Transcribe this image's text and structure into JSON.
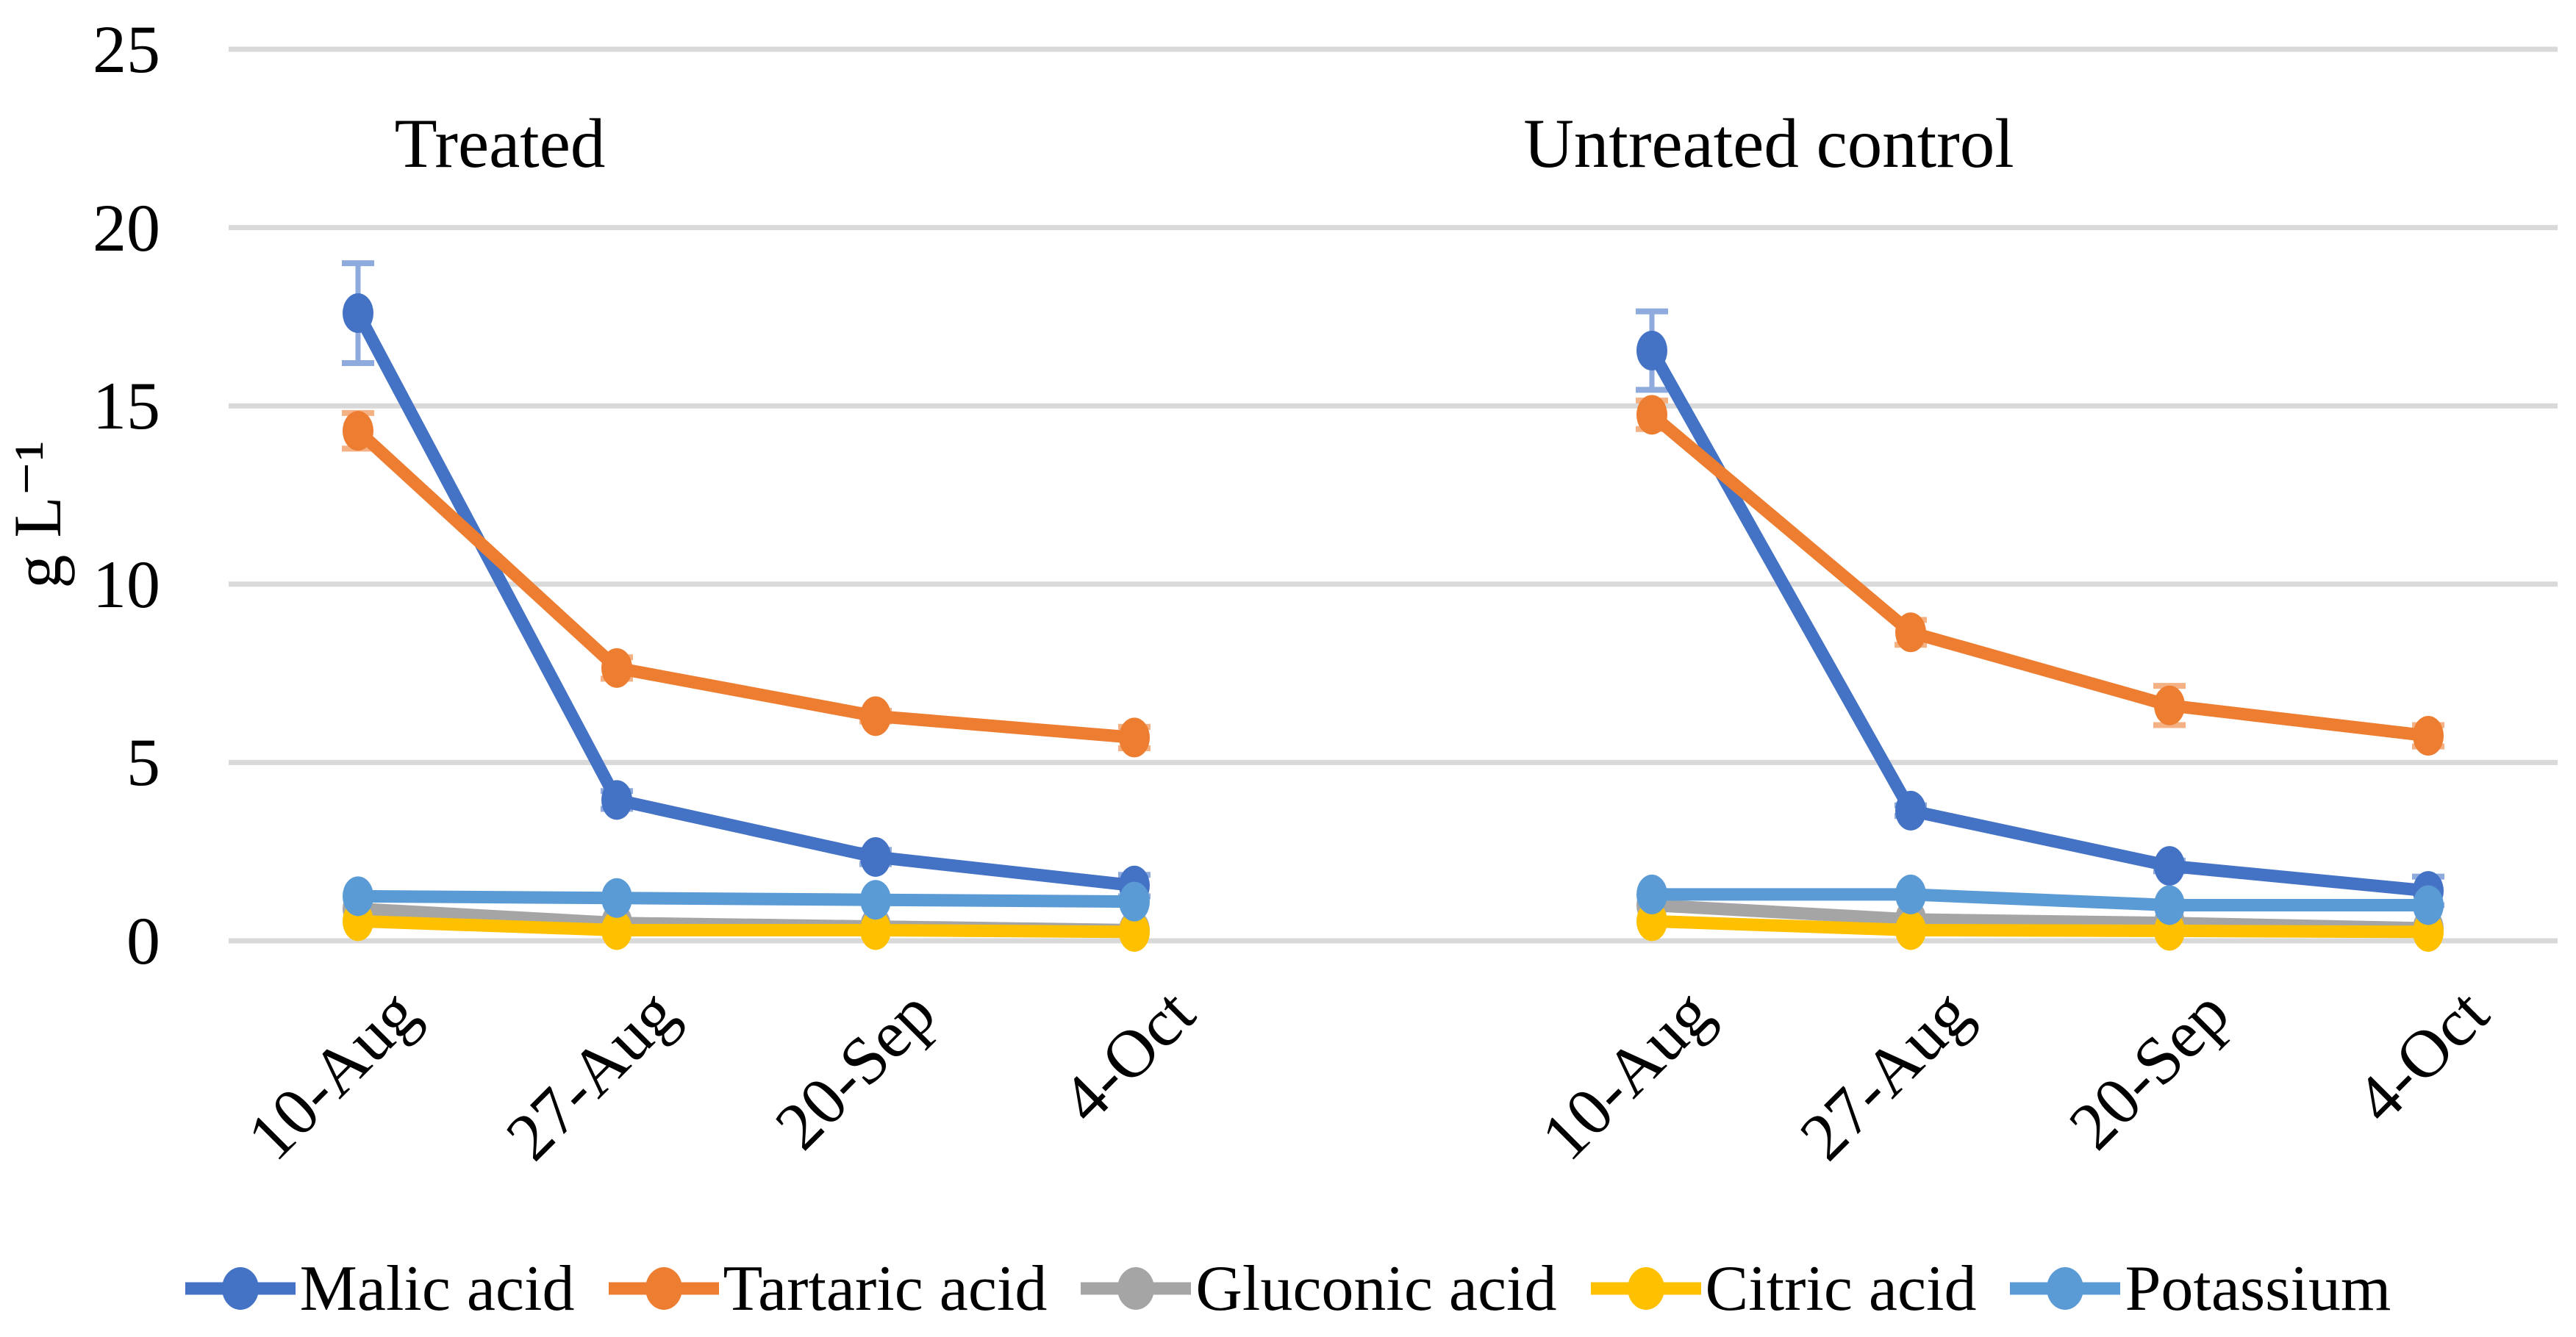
{
  "chart_data": {
    "type": "line",
    "title": "",
    "y_axis": {
      "label": "g L⁻¹",
      "ticks": [
        0,
        5,
        10,
        15,
        20,
        25
      ],
      "min": 0,
      "max": 25,
      "grid": true,
      "grid_color": "#D9D9D9"
    },
    "categories": [
      "10-Aug",
      "27-Aug",
      "20-Sep",
      "4-Oct"
    ],
    "panels": [
      {
        "key": "treated",
        "title": "Treated"
      },
      {
        "key": "untreated",
        "title": "Untreated control"
      }
    ],
    "legend_position": "bottom",
    "series": [
      {
        "name": "Malic acid",
        "color": "#4472C4",
        "error_color": "#8FAADC",
        "values": {
          "treated": [
            17.6,
            3.95,
            2.35,
            1.55
          ],
          "untreated": [
            16.55,
            3.65,
            2.1,
            1.4
          ]
        },
        "errors": {
          "treated": [
            1.4,
            0.25,
            0.2,
            0.3
          ],
          "untreated": [
            1.1,
            0.15,
            0.15,
            0.4
          ]
        }
      },
      {
        "name": "Tartaric acid",
        "color": "#ED7D31",
        "error_color": "#F4B183",
        "values": {
          "treated": [
            14.3,
            7.65,
            6.3,
            5.7
          ],
          "untreated": [
            14.75,
            8.65,
            6.6,
            5.75
          ]
        },
        "errors": {
          "treated": [
            0.5,
            0.3,
            0.15,
            0.3
          ],
          "untreated": [
            0.4,
            0.35,
            0.55,
            0.3
          ]
        }
      },
      {
        "name": "Gluconic acid",
        "color": "#A5A5A5",
        "values": {
          "treated": [
            0.9,
            0.5,
            0.4,
            0.3
          ],
          "untreated": [
            1.0,
            0.6,
            0.5,
            0.35
          ]
        }
      },
      {
        "name": "Citric acid",
        "color": "#FFC000",
        "values": {
          "treated": [
            0.55,
            0.3,
            0.3,
            0.25
          ],
          "untreated": [
            0.55,
            0.3,
            0.28,
            0.25
          ]
        }
      },
      {
        "name": "Potassium",
        "color": "#5B9BD5",
        "values": {
          "treated": [
            1.25,
            1.2,
            1.15,
            1.1
          ],
          "untreated": [
            1.3,
            1.3,
            1.0,
            1.0
          ]
        }
      }
    ]
  }
}
